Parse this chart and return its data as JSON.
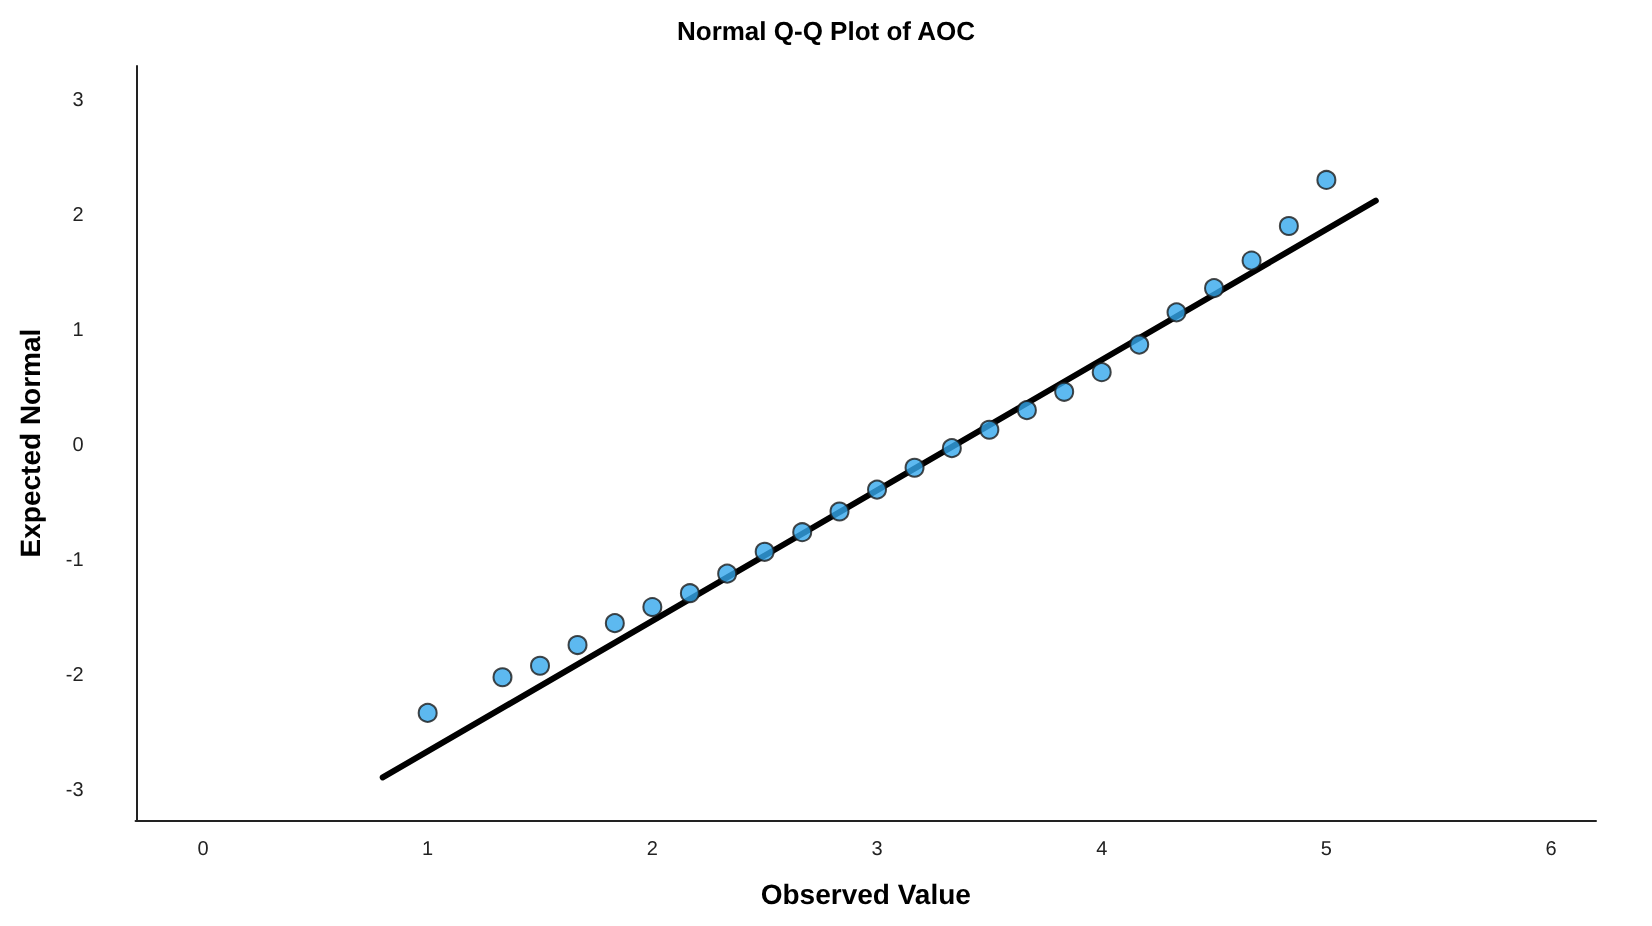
{
  "chart_data": {
    "type": "scatter",
    "title": "Normal Q-Q Plot of AOC",
    "xlabel": "Observed Value",
    "ylabel": "Expected Normal",
    "xlim": [
      -0.3,
      6.2
    ],
    "xticks": [
      0,
      1,
      2,
      3,
      4,
      5,
      6
    ],
    "ylim": [
      -3.25,
      3.3
    ],
    "yticks": [
      -3,
      -2,
      -1,
      0,
      1,
      2,
      3
    ],
    "grid": false,
    "series": [
      {
        "color": "#35a7ec",
        "marker": "circle",
        "x": [
          1,
          1.333,
          1.5,
          1.667,
          1.833,
          2,
          2.167,
          2.333,
          2.5,
          2.667,
          2.833,
          3,
          3.167,
          3.333,
          3.5,
          3.667,
          3.833,
          4,
          4.167,
          4.333,
          4.5,
          4.667,
          4.833,
          5
        ],
        "values": [
          -2.32,
          -2.01,
          -1.91,
          -1.73,
          -1.54,
          -1.4,
          -1.28,
          -1.11,
          -0.92,
          -0.75,
          -0.57,
          -0.38,
          -0.19,
          -0.02,
          0.14,
          0.31,
          0.47,
          0.64,
          0.88,
          1.16,
          1.37,
          1.61,
          1.91,
          2.31
        ]
      },
      {
        "type": "line",
        "color": "#000000",
        "marker": "none",
        "line_style": "solid",
        "x": [
          0.8,
          5.22
        ],
        "values": [
          -2.88,
          2.13
        ]
      }
    ]
  }
}
